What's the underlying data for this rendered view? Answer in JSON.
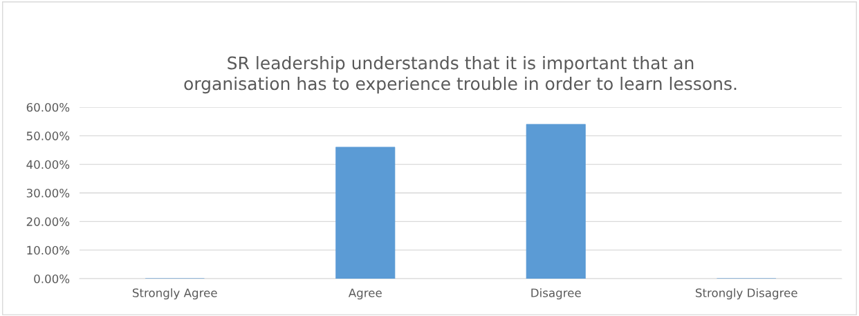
{
  "chart_data": {
    "type": "bar",
    "title": "SR leadership understands that it is important that an\norganisation has to experience trouble in order to learn lessons.",
    "categories": [
      "Strongly Agree",
      "Agree",
      "Disagree",
      "Strongly Disagree"
    ],
    "values": [
      0,
      46,
      54,
      0
    ],
    "color": "#5b9bd5",
    "ylim": [
      0,
      60
    ],
    "yticks": [
      {
        "value": 0,
        "label": "0.00%"
      },
      {
        "value": 10,
        "label": "10.00%"
      },
      {
        "value": 20,
        "label": "20.00%"
      },
      {
        "value": 30,
        "label": "30.00%"
      },
      {
        "value": 40,
        "label": "40.00%"
      },
      {
        "value": 50,
        "label": "50.00%"
      },
      {
        "value": 60,
        "label": "60.00%"
      }
    ],
    "grid": "y"
  }
}
